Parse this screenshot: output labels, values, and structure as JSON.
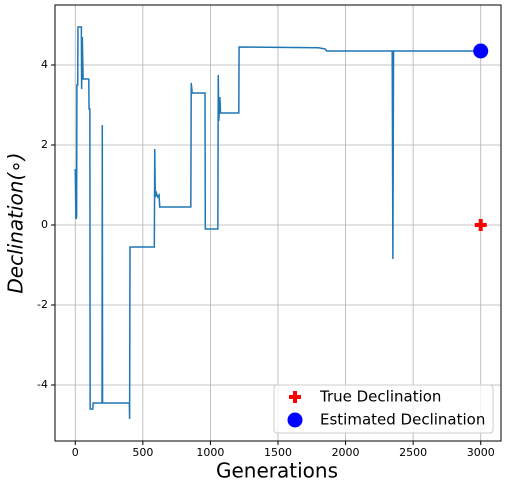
{
  "chart_data": {
    "type": "line",
    "xlabel": "Generations",
    "ylabel": "Declination(∘)",
    "xlim": [
      -150,
      3150
    ],
    "ylim": [
      -5.4,
      5.5
    ],
    "xticks": [
      0,
      500,
      1000,
      1500,
      2000,
      2500,
      3000
    ],
    "yticks": [
      -4,
      -2,
      0,
      2,
      4
    ],
    "grid": true,
    "legend": "lower right",
    "trace": {
      "color": "#1f77b4",
      "x": [
        0,
        5,
        10,
        12,
        18,
        20,
        45,
        47,
        52,
        58,
        100,
        102,
        108,
        110,
        130,
        132,
        198,
        200,
        202,
        400,
        402,
        405,
        585,
        588,
        592,
        600,
        610,
        620,
        625,
        855,
        858,
        865,
        960,
        962,
        1055,
        1058,
        1062,
        1070,
        1075,
        1210,
        1212,
        1800,
        1850,
        1860,
        2345,
        2350,
        2355,
        3000
      ],
      "values": [
        1.4,
        0.15,
        0.2,
        3.5,
        3.5,
        4.95,
        4.95,
        3.4,
        4.7,
        3.65,
        3.65,
        2.9,
        2.9,
        -4.6,
        -4.6,
        -4.45,
        -4.45,
        2.5,
        -4.45,
        -4.45,
        -4.85,
        -0.55,
        -0.55,
        1.9,
        0.7,
        0.8,
        0.7,
        0.75,
        0.45,
        0.45,
        3.55,
        3.3,
        3.3,
        -0.1,
        -0.1,
        3.75,
        2.6,
        3.2,
        2.8,
        2.8,
        4.45,
        4.43,
        4.4,
        4.35,
        4.35,
        -0.85,
        4.35,
        4.35
      ]
    },
    "series": [
      {
        "name": "True Declination",
        "color": "#ff0000",
        "marker": "plus",
        "x": [
          3000
        ],
        "values": [
          0
        ]
      },
      {
        "name": "Estimated Declination",
        "color": "#0000ff",
        "marker": "circle",
        "x": [
          3000
        ],
        "values": [
          4.35
        ]
      }
    ]
  }
}
